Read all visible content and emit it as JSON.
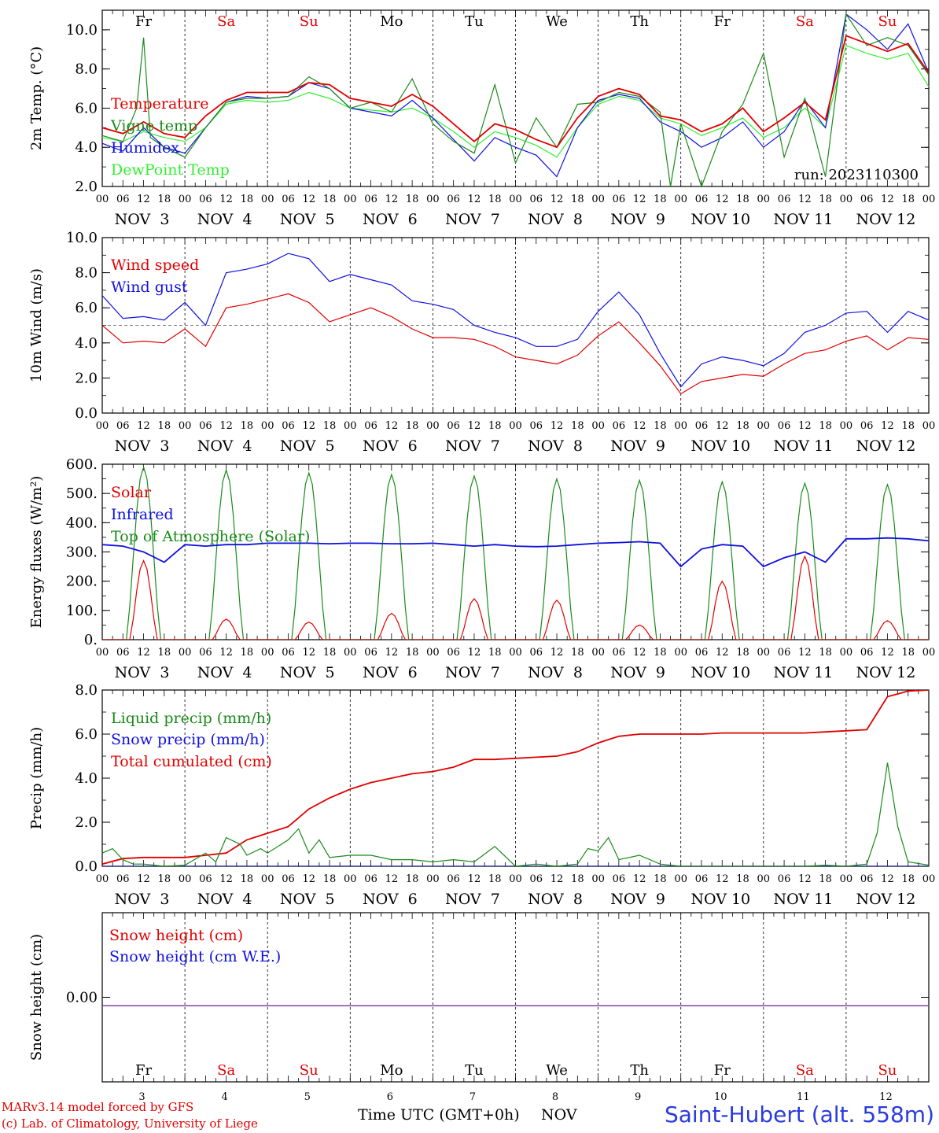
{
  "chart_data": [
    {
      "type": "line",
      "title": "",
      "ylabel": "2m Temp. (°C)",
      "ylim": [
        2.0,
        11.0
      ],
      "yticks": [
        2.0,
        4.0,
        6.0,
        8.0,
        10.0
      ],
      "x_unit": "hours since 2023-11-03 00 UTC",
      "xlim": [
        0,
        240
      ],
      "day_labels": [
        "Fr",
        "Sa",
        "Su",
        "Mo",
        "Tu",
        "We",
        "Th",
        "Fr",
        "Sa",
        "Su"
      ],
      "run_label": "run: 2023110300",
      "series": [
        {
          "name": "Temperature",
          "color": "#e00000",
          "x": [
            0,
            6,
            12,
            18,
            24,
            30,
            36,
            42,
            48,
            54,
            60,
            66,
            72,
            78,
            84,
            90,
            96,
            102,
            108,
            114,
            120,
            126,
            132,
            138,
            144,
            150,
            156,
            162,
            168,
            174,
            180,
            186,
            192,
            198,
            204,
            210,
            216,
            222,
            228,
            234,
            240
          ],
          "values": [
            5.0,
            4.7,
            5.3,
            4.7,
            4.5,
            5.6,
            6.4,
            6.8,
            6.8,
            6.8,
            7.3,
            7.2,
            6.5,
            6.3,
            6.1,
            6.7,
            6.1,
            5.2,
            4.3,
            5.2,
            4.9,
            4.4,
            4.0,
            5.5,
            6.6,
            7.0,
            6.7,
            5.6,
            5.4,
            4.8,
            5.2,
            6.0,
            4.8,
            5.5,
            6.3,
            5.4,
            9.7,
            9.3,
            8.9,
            9.3,
            7.8
          ]
        },
        {
          "name": "Vigne temp",
          "color": "#1a8a1a",
          "x": [
            0,
            6,
            10,
            12,
            14,
            18,
            24,
            30,
            36,
            42,
            48,
            54,
            60,
            66,
            72,
            78,
            84,
            90,
            96,
            102,
            108,
            114,
            120,
            126,
            132,
            138,
            144,
            150,
            156,
            162,
            165,
            168,
            174,
            180,
            186,
            192,
            198,
            204,
            210,
            216,
            222,
            228,
            234,
            240
          ],
          "values": [
            4.6,
            4.3,
            6.0,
            9.6,
            4.5,
            4.0,
            3.5,
            5.0,
            6.3,
            6.5,
            6.5,
            6.6,
            7.6,
            7.0,
            6.0,
            6.3,
            5.8,
            7.5,
            5.2,
            4.3,
            3.7,
            7.2,
            3.2,
            5.5,
            4.0,
            6.2,
            6.3,
            6.8,
            6.6,
            5.8,
            2.0,
            5.2,
            2.0,
            4.8,
            6.2,
            8.8,
            3.5,
            6.5,
            2.5,
            10.8,
            9.2,
            9.6,
            9.2,
            7.7
          ]
        },
        {
          "name": "Humidex",
          "color": "#1010e0",
          "x": [
            0,
            6,
            12,
            18,
            24,
            30,
            36,
            42,
            48,
            54,
            60,
            66,
            72,
            78,
            84,
            90,
            96,
            102,
            108,
            114,
            120,
            126,
            132,
            138,
            144,
            150,
            156,
            162,
            168,
            174,
            180,
            186,
            192,
            198,
            204,
            210,
            216,
            222,
            228,
            234,
            240
          ],
          "values": [
            4.2,
            3.8,
            5.0,
            4.0,
            3.7,
            5.0,
            6.3,
            6.6,
            6.5,
            6.6,
            7.3,
            7.0,
            6.0,
            5.8,
            5.6,
            6.4,
            5.5,
            4.4,
            3.3,
            4.5,
            4.0,
            3.6,
            2.5,
            5.0,
            6.4,
            6.7,
            6.5,
            5.3,
            4.8,
            4.0,
            4.5,
            5.3,
            4.0,
            4.8,
            6.4,
            5.0,
            10.8,
            10.0,
            9.0,
            10.3,
            7.8
          ]
        },
        {
          "name": "DewPoint Temp",
          "color": "#33ee33",
          "x": [
            0,
            6,
            12,
            18,
            24,
            30,
            36,
            42,
            48,
            54,
            60,
            66,
            72,
            78,
            84,
            90,
            96,
            102,
            108,
            114,
            120,
            126,
            132,
            138,
            144,
            150,
            156,
            162,
            168,
            174,
            180,
            186,
            192,
            198,
            204,
            210,
            216,
            222,
            228,
            234,
            240
          ],
          "values": [
            4.5,
            4.3,
            4.8,
            4.5,
            4.3,
            5.0,
            6.2,
            6.4,
            6.3,
            6.4,
            6.8,
            6.5,
            6.0,
            5.9,
            5.8,
            6.0,
            5.5,
            4.8,
            4.0,
            4.8,
            4.5,
            4.1,
            3.5,
            5.0,
            6.2,
            6.6,
            6.4,
            5.5,
            5.2,
            4.6,
            5.0,
            5.5,
            4.5,
            5.0,
            6.0,
            5.0,
            9.2,
            8.8,
            8.5,
            8.8,
            7.1
          ]
        }
      ]
    },
    {
      "type": "line",
      "title": "",
      "ylabel": "10m Wind (m/s)",
      "ylim": [
        0.0,
        10.0
      ],
      "yticks": [
        0.0,
        2.0,
        4.0,
        6.0,
        8.0,
        10.0
      ],
      "reference_line": 5.0,
      "xlim": [
        0,
        240
      ],
      "series": [
        {
          "name": "Wind speed",
          "color": "#e00000",
          "x": [
            0,
            6,
            12,
            18,
            24,
            30,
            36,
            42,
            48,
            54,
            60,
            66,
            72,
            78,
            84,
            90,
            96,
            102,
            108,
            114,
            120,
            126,
            132,
            138,
            144,
            150,
            156,
            162,
            168,
            174,
            180,
            186,
            192,
            198,
            204,
            210,
            216,
            222,
            228,
            234,
            240
          ],
          "values": [
            5.0,
            4.0,
            4.1,
            4.0,
            4.8,
            3.8,
            6.0,
            6.2,
            6.5,
            6.8,
            6.3,
            5.2,
            5.6,
            6.0,
            5.5,
            4.8,
            4.3,
            4.3,
            4.2,
            3.8,
            3.2,
            3.0,
            2.8,
            3.3,
            4.4,
            5.2,
            4.0,
            2.7,
            1.1,
            1.8,
            2.0,
            2.2,
            2.1,
            2.8,
            3.4,
            3.6,
            4.1,
            4.4,
            3.6,
            4.3,
            4.2
          ]
        },
        {
          "name": "Wind gust",
          "color": "#1010e0",
          "x": [
            0,
            6,
            12,
            18,
            24,
            30,
            36,
            42,
            48,
            54,
            60,
            66,
            72,
            78,
            84,
            90,
            96,
            102,
            108,
            114,
            120,
            126,
            132,
            138,
            144,
            150,
            156,
            162,
            168,
            174,
            180,
            186,
            192,
            198,
            204,
            210,
            216,
            222,
            228,
            234,
            240
          ],
          "values": [
            6.7,
            5.4,
            5.5,
            5.3,
            6.3,
            5.0,
            8.0,
            8.2,
            8.5,
            9.1,
            8.8,
            7.5,
            7.9,
            7.6,
            7.3,
            6.4,
            6.2,
            5.9,
            5.0,
            4.6,
            4.3,
            3.8,
            3.8,
            4.2,
            5.8,
            6.9,
            5.6,
            3.4,
            1.5,
            2.8,
            3.2,
            3.0,
            2.7,
            3.4,
            4.6,
            5.0,
            5.7,
            5.8,
            4.6,
            5.8,
            5.3
          ]
        }
      ]
    },
    {
      "type": "line",
      "title": "",
      "ylabel": "Energy fluxes (W/m²)",
      "ylim": [
        0,
        600
      ],
      "yticks": [
        0,
        100,
        200,
        300,
        400,
        500,
        600
      ],
      "ytick_labels": [
        "0.",
        "100.",
        "200.",
        "300.",
        "400.",
        "500.",
        "600."
      ],
      "xlim": [
        0,
        240
      ],
      "series": [
        {
          "name": "Solar",
          "color": "#e00000",
          "day_peaks": [
            270,
            70,
            60,
            90,
            140,
            135,
            50,
            200,
            285,
            65
          ]
        },
        {
          "name": "Infrared",
          "color": "#1010e0",
          "x": [
            0,
            6,
            12,
            18,
            24,
            30,
            36,
            42,
            48,
            54,
            60,
            66,
            72,
            78,
            84,
            90,
            96,
            102,
            108,
            114,
            120,
            126,
            132,
            138,
            144,
            150,
            156,
            162,
            168,
            174,
            180,
            186,
            192,
            198,
            204,
            210,
            216,
            222,
            228,
            234,
            240
          ],
          "values": [
            325,
            320,
            300,
            265,
            325,
            320,
            325,
            325,
            330,
            330,
            330,
            328,
            330,
            330,
            328,
            328,
            330,
            325,
            320,
            325,
            320,
            318,
            320,
            325,
            330,
            332,
            335,
            330,
            250,
            310,
            325,
            320,
            250,
            280,
            300,
            265,
            345,
            345,
            348,
            345,
            338
          ]
        },
        {
          "name": "Top of Atmosphere (Solar)",
          "color": "#1a8a1a",
          "day_peaks": [
            590,
            580,
            570,
            565,
            560,
            550,
            545,
            540,
            535,
            530
          ]
        }
      ]
    },
    {
      "type": "line",
      "title": "",
      "ylabel": "Precip (mm/h)",
      "ylim": [
        0.0,
        8.0
      ],
      "yticks": [
        0.0,
        2.0,
        4.0,
        6.0,
        8.0
      ],
      "xlim": [
        0,
        240
      ],
      "series": [
        {
          "name": "Liquid precip (mm/h)",
          "color": "#1a8a1a",
          "x": [
            0,
            3,
            6,
            9,
            12,
            18,
            24,
            30,
            33,
            36,
            40,
            42,
            46,
            48,
            54,
            57,
            60,
            63,
            66,
            72,
            78,
            84,
            90,
            96,
            102,
            108,
            114,
            120,
            126,
            132,
            138,
            141,
            144,
            147,
            150,
            156,
            162,
            168,
            174,
            180,
            186,
            192,
            198,
            204,
            210,
            216,
            222,
            225,
            228,
            231,
            234,
            240
          ],
          "values": [
            0.6,
            0.8,
            0.3,
            0.1,
            0.1,
            0.0,
            0.05,
            0.6,
            0.2,
            1.3,
            1.0,
            0.5,
            0.8,
            0.6,
            1.2,
            1.7,
            0.6,
            1.2,
            0.4,
            0.5,
            0.5,
            0.3,
            0.3,
            0.2,
            0.3,
            0.2,
            0.9,
            0.0,
            0.1,
            0.0,
            0.1,
            0.8,
            0.7,
            1.3,
            0.3,
            0.5,
            0.1,
            0.0,
            0.0,
            0.0,
            0.0,
            0.0,
            0.0,
            0.0,
            0.05,
            0.0,
            0.1,
            1.5,
            4.7,
            1.8,
            0.2,
            0.05
          ]
        },
        {
          "name": "Snow precip (mm/h)",
          "color": "#1010e0",
          "x": [
            0,
            240
          ],
          "values": [
            0.0,
            0.0
          ]
        },
        {
          "name": "Total cumulated (cm)",
          "color": "#e00000",
          "x": [
            0,
            6,
            12,
            18,
            24,
            30,
            36,
            42,
            48,
            54,
            60,
            66,
            72,
            78,
            84,
            90,
            96,
            102,
            108,
            114,
            120,
            126,
            132,
            138,
            144,
            150,
            156,
            162,
            168,
            174,
            180,
            186,
            192,
            198,
            204,
            210,
            216,
            222,
            228,
            234,
            240
          ],
          "values": [
            0.1,
            0.35,
            0.4,
            0.4,
            0.4,
            0.5,
            0.6,
            1.2,
            1.5,
            1.8,
            2.6,
            3.1,
            3.5,
            3.8,
            4.0,
            4.2,
            4.3,
            4.5,
            4.85,
            4.85,
            4.9,
            4.95,
            5.0,
            5.2,
            5.6,
            5.9,
            6.0,
            6.0,
            6.0,
            6.0,
            6.05,
            6.05,
            6.05,
            6.05,
            6.05,
            6.1,
            6.15,
            6.2,
            7.7,
            7.95,
            8.0
          ]
        }
      ]
    },
    {
      "type": "line",
      "title": "",
      "ylabel": "Snow height (cm)",
      "yticks": [
        0.0
      ],
      "ytick_labels": [
        "0.00"
      ],
      "xlim": [
        0,
        240
      ],
      "day_labels": [
        "Fr",
        "Sa",
        "Su",
        "Mo",
        "Tu",
        "We",
        "Th",
        "Fr",
        "Sa",
        "Su"
      ],
      "date_numbers": [
        "3",
        "4",
        "5",
        "6",
        "7",
        "8",
        "9",
        "10",
        "11",
        "12"
      ],
      "series": [
        {
          "name": "Snow height (cm)",
          "color": "#e00000",
          "x": [
            0,
            240
          ],
          "values": [
            0.0,
            0.0
          ]
        },
        {
          "name": "Snow height (cm W.E.)",
          "color": "#1010e0",
          "x": [
            0,
            240
          ],
          "values": [
            0.0,
            0.0
          ]
        }
      ]
    }
  ],
  "x_axis": {
    "hour_ticks": [
      "00",
      "06",
      "12",
      "18"
    ],
    "final_tick": "00",
    "date_labels": [
      "NOV  3",
      "NOV  4",
      "NOV  5",
      "NOV  6",
      "NOV  7",
      "NOV  8",
      "NOV  9",
      "NOV 10",
      "NOV 11",
      "NOV 12"
    ],
    "weekend_color": "#e00000"
  },
  "footer": {
    "model_line": "MARv3.14 model forced by GFS",
    "credit_line": "(c) Lab. of Climatology, University of Liege",
    "time_label": "Time UTC (GMT+0h)",
    "month_label": "NOV",
    "station": "Saint-Hubert (alt. 558m)"
  }
}
